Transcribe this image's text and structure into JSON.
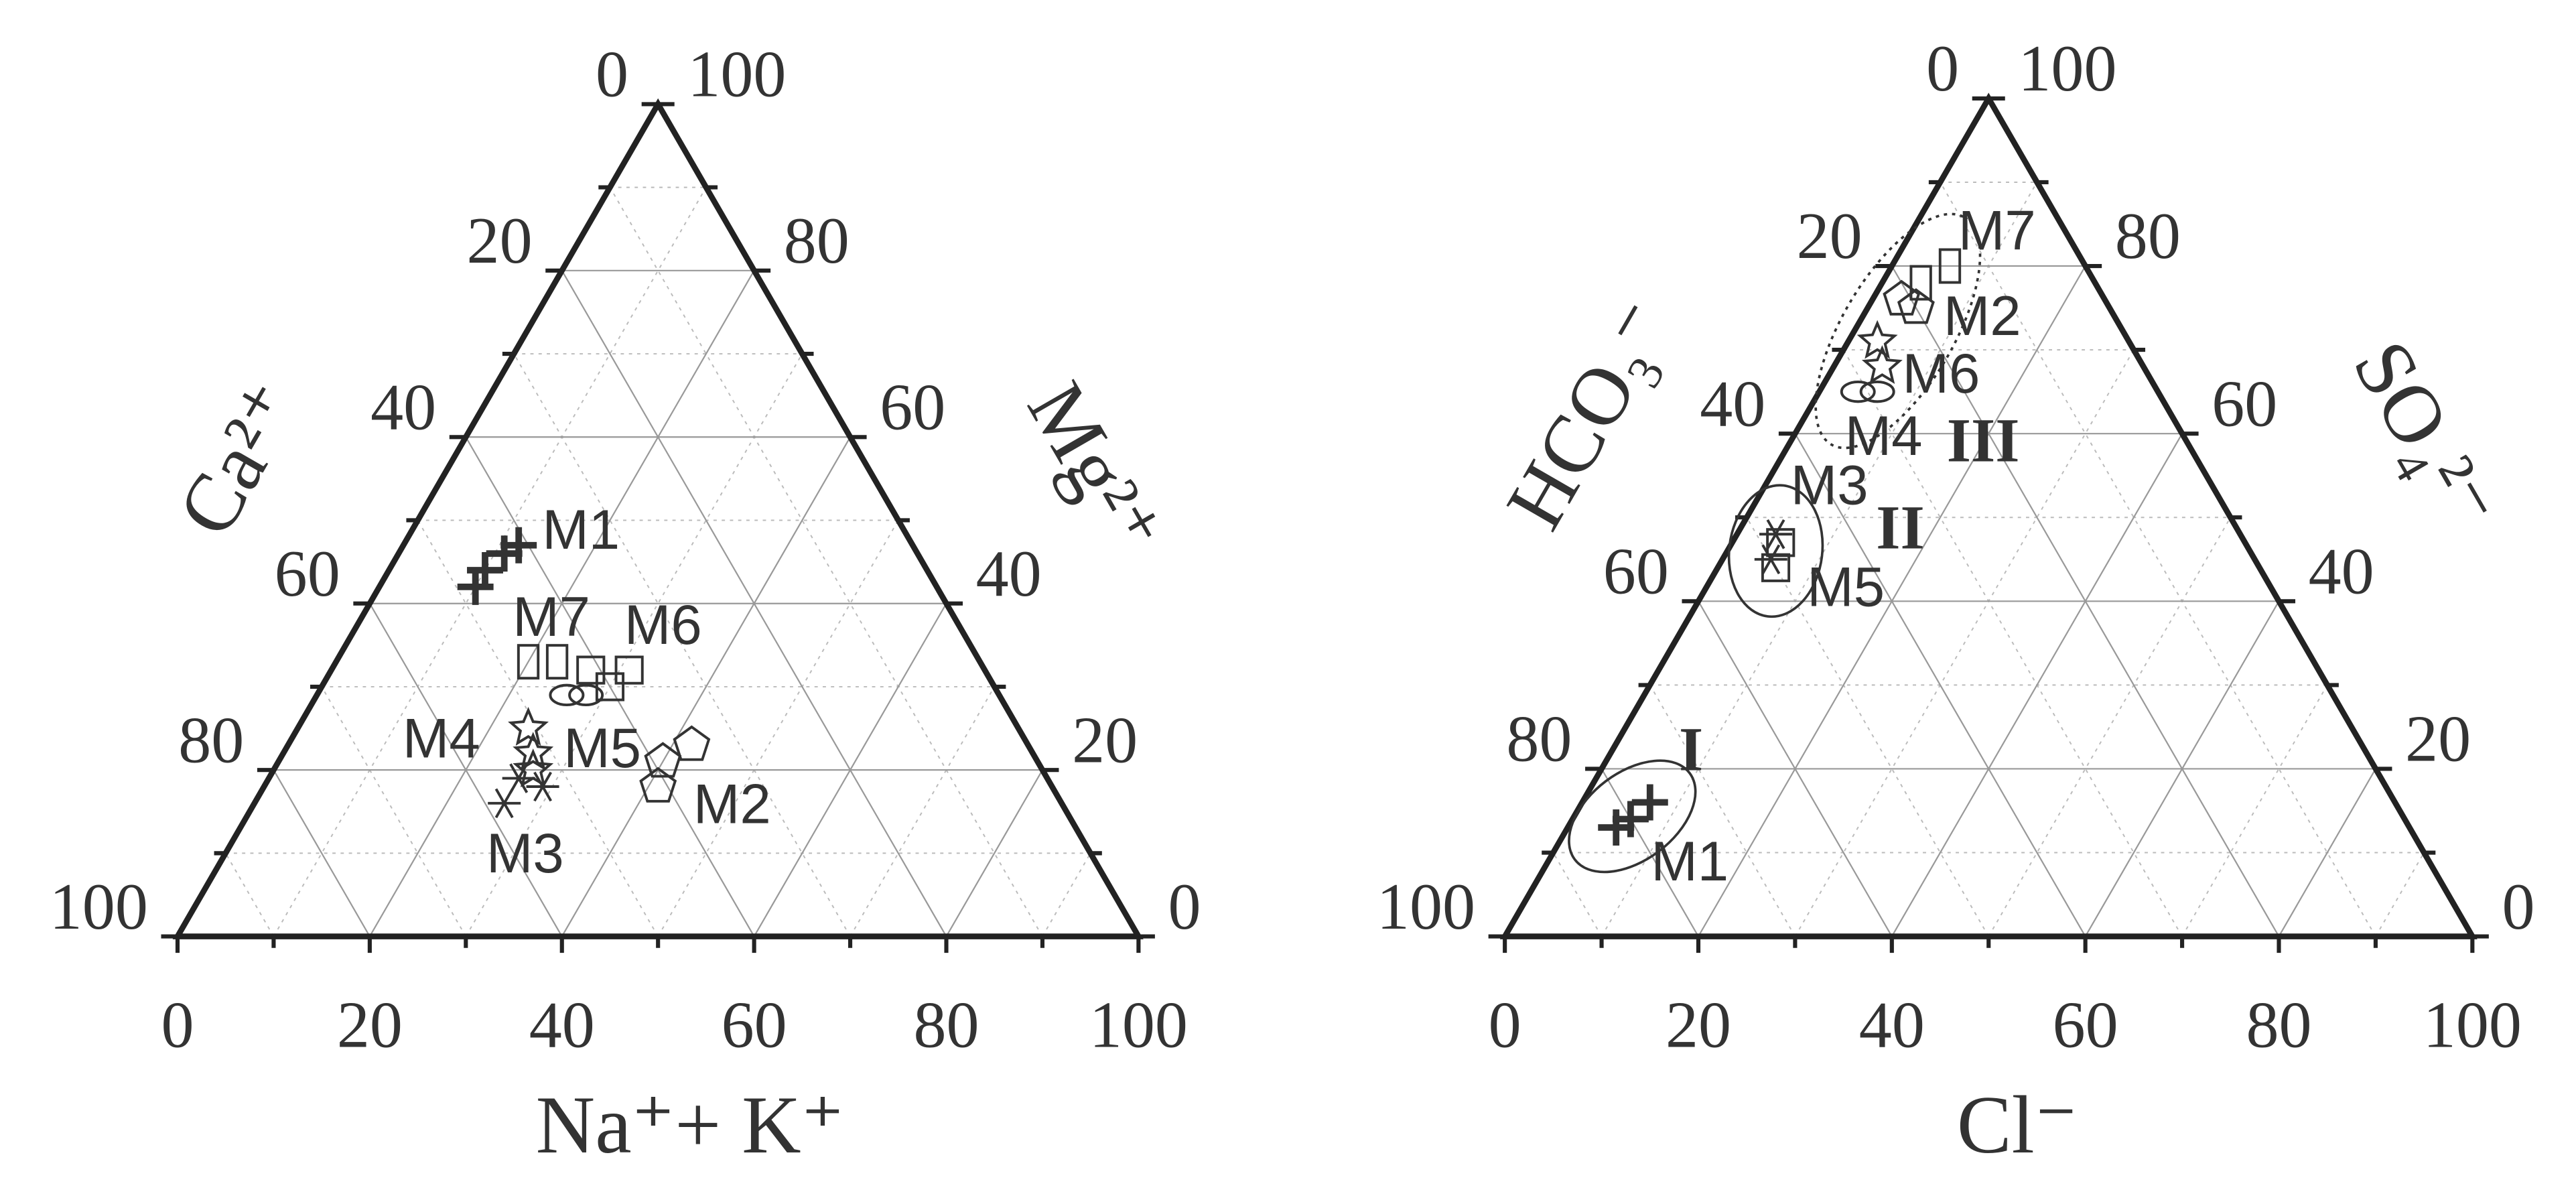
{
  "chart_data": [
    {
      "type": "ternary",
      "axes": {
        "left": "Ca²⁺",
        "right": "Mg²⁺",
        "bottom": "Na⁺+ K⁺"
      },
      "ticks": [
        0,
        20,
        40,
        60,
        80,
        100
      ],
      "minor_ticks": [
        10,
        30,
        50,
        70,
        90
      ],
      "series": [
        {
          "name": "M1",
          "marker": "plus",
          "points": [
            {
              "left": 48,
              "right": 42,
              "bottom": 10
            },
            {
              "left": 46,
              "right": 44,
              "bottom": 10
            },
            {
              "left": 43,
              "right": 46,
              "bottom": 11
            },
            {
              "left": 41,
              "right": 47,
              "bottom": 12
            }
          ]
        },
        {
          "name": "M2",
          "marker": "pentagon",
          "points": [
            {
              "left": 41,
              "right": 18,
              "bottom": 41
            },
            {
              "left": 39,
              "right": 21,
              "bottom": 40
            },
            {
              "left": 35,
              "right": 23,
              "bottom": 42
            }
          ]
        },
        {
          "name": "M3",
          "marker": "asterisk",
          "points": [
            {
              "left": 58,
              "right": 16,
              "bottom": 26
            },
            {
              "left": 55,
              "right": 19,
              "bottom": 26
            },
            {
              "left": 53,
              "right": 18,
              "bottom": 29
            }
          ]
        },
        {
          "name": "M4",
          "marker": "ellipse",
          "points": [
            {
              "left": 46,
              "right": 29,
              "bottom": 26
            },
            {
              "left": 43,
              "right": 29,
              "bottom": 28
            }
          ]
        },
        {
          "name": "M5",
          "marker": "star",
          "points": [
            {
              "left": 52,
              "right": 25,
              "bottom": 24
            },
            {
              "left": 52,
              "right": 22,
              "bottom": 26
            },
            {
              "left": 53,
              "right": 20,
              "bottom": 27
            }
          ]
        },
        {
          "name": "M6",
          "marker": "square",
          "points": [
            {
              "left": 41,
              "right": 32,
              "bottom": 27
            },
            {
              "left": 40,
              "right": 30,
              "bottom": 30
            },
            {
              "left": 37,
              "right": 32,
              "bottom": 31
            }
          ]
        },
        {
          "name": "M7",
          "marker": "rect",
          "points": [
            {
              "left": 47,
              "right": 33,
              "bottom": 20
            },
            {
              "left": 44,
              "right": 33,
              "bottom": 23
            }
          ]
        }
      ]
    },
    {
      "type": "ternary",
      "axes": {
        "left": "HCO₃⁻",
        "right": "SO₄²⁻",
        "bottom": "Cl⁻"
      },
      "ticks": [
        0,
        20,
        40,
        60,
        80,
        100
      ],
      "minor_ticks": [
        10,
        30,
        50,
        70,
        90
      ],
      "series": [
        {
          "name": "M1",
          "marker": "plus",
          "points": [
            {
              "left": 82,
              "right": 13,
              "bottom": 5
            },
            {
              "left": 79,
              "right": 14,
              "bottom": 6
            },
            {
              "left": 77,
              "right": 16,
              "bottom": 7
            }
          ]
        },
        {
          "name": "M2",
          "marker": "pentagon",
          "points": [
            {
              "left": 20,
              "right": 76,
              "bottom": 3
            },
            {
              "left": 21,
              "right": 75,
              "bottom": 5
            }
          ]
        },
        {
          "name": "M3",
          "marker": "asterisk",
          "points": [
            {
              "left": 50,
              "right": 45,
              "bottom": 5
            },
            {
              "left": 48,
              "right": 48,
              "bottom": 4
            }
          ]
        },
        {
          "name": "M4",
          "marker": "ellipse",
          "points": [
            {
              "left": 31,
              "right": 65,
              "bottom": 4
            },
            {
              "left": 29,
              "right": 65,
              "bottom": 6
            }
          ]
        },
        {
          "name": "M5",
          "marker": "square",
          "points": [
            {
              "left": 50,
              "right": 44,
              "bottom": 6
            },
            {
              "left": 48,
              "right": 47,
              "bottom": 5
            }
          ]
        },
        {
          "name": "M6",
          "marker": "star",
          "points": [
            {
              "left": 26,
              "right": 71,
              "bottom": 3
            },
            {
              "left": 27,
              "right": 68,
              "bottom": 5
            }
          ]
        },
        {
          "name": "M7",
          "marker": "rect",
          "points": [
            {
              "left": 14,
              "right": 80,
              "bottom": 6
            },
            {
              "left": 17,
              "right": 78,
              "bottom": 4
            }
          ]
        }
      ],
      "groups": [
        {
          "label": "I",
          "series": [
            0
          ],
          "line": "solid"
        },
        {
          "label": "II",
          "series": [
            2,
            4
          ],
          "line": "solid"
        },
        {
          "label": "III",
          "series": [
            1,
            3,
            5,
            6
          ],
          "line": "dotted"
        }
      ]
    }
  ]
}
